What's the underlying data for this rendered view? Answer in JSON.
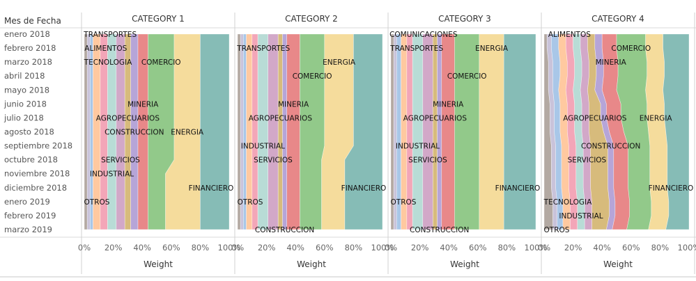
{
  "chart_data": {
    "type": "area",
    "orientation": "horizontal-stacked-100",
    "row_header": "Mes de Fecha",
    "months": [
      "enero 2018",
      "febrero 2018",
      "marzo 2018",
      "abril 2018",
      "mayo 2018",
      "junio 2018",
      "julio 2018",
      "agosto 2018",
      "septiembre 2018",
      "octubre 2018",
      "noviembre 2018",
      "diciembre 2018",
      "enero 2019",
      "febrero 2019",
      "marzo 2019"
    ],
    "x_ticks": [
      "0%",
      "20%",
      "40%",
      "60%",
      "80%",
      "100%"
    ],
    "xlabel": "Weight",
    "xlim": [
      0,
      100
    ],
    "grid": false,
    "colors": {
      "OTROS": "#b3a9a2",
      "TECNOLOGIA": "#c9c3da",
      "COMUNICACIONES": "#a9c7e8",
      "TRANSPORTES": "#ffc9a0",
      "ALIMENTOS": "#f3a6b8",
      "INDUSTRIAL": "#b8dcd6",
      "SERVICIOS": "#d2a8c8",
      "AGROPECUARIOS": "#d7bb7c",
      "CONSTRUCCION": "#b6a5d8",
      "MINERIA": "#e88889",
      "COMERCIO": "#92c98a",
      "ENERGIA": "#f5dc9c",
      "FINANCIERO": "#86bcb6"
    },
    "categories": [
      "OTROS",
      "TECNOLOGIA",
      "COMUNICACIONES",
      "TRANSPORTES",
      "ALIMENTOS",
      "INDUSTRIAL",
      "SERVICIOS",
      "AGROPECUARIOS",
      "CONSTRUCCION",
      "MINERIA",
      "COMERCIO",
      "ENERGIA",
      "FINANCIERO"
    ],
    "panels": [
      {
        "title": "CATEGORY 1",
        "series": {
          "OTROS": [
            2,
            2,
            2,
            2,
            2,
            2,
            2,
            2,
            2,
            2,
            2,
            2,
            2,
            2,
            2
          ],
          "TECNOLOGIA": [
            2,
            2,
            2,
            2,
            2,
            2,
            2,
            2,
            2,
            2,
            2,
            2,
            2,
            2,
            2
          ],
          "COMUNICACIONES": [
            2,
            2,
            2,
            2,
            2,
            2,
            2,
            2,
            2,
            2,
            2,
            2,
            2,
            2,
            2
          ],
          "TRANSPORTES": [
            5,
            5,
            5,
            5,
            5,
            5,
            5,
            5,
            5,
            5,
            5,
            5,
            5,
            5,
            5
          ],
          "ALIMENTOS": [
            5,
            5,
            5,
            5,
            5,
            5,
            5,
            5,
            5,
            5,
            5,
            5,
            5,
            5,
            5
          ],
          "INDUSTRIAL": [
            6,
            6,
            6,
            6,
            6,
            6,
            6,
            6,
            6,
            6,
            6,
            6,
            6,
            6,
            6
          ],
          "SERVICIOS": [
            6,
            6,
            6,
            6,
            6,
            6,
            6,
            6,
            6,
            6,
            6,
            6,
            6,
            6,
            6
          ],
          "AGROPECUARIOS": [
            4,
            4,
            4,
            4,
            4,
            4,
            4,
            4,
            4,
            4,
            4,
            4,
            4,
            4,
            4
          ],
          "CONSTRUCCION": [
            5,
            5,
            5,
            5,
            5,
            5,
            5,
            5,
            5,
            5,
            5,
            5,
            5,
            5,
            5
          ],
          "MINERIA": [
            7,
            7,
            7,
            7,
            7,
            7,
            7,
            7,
            7,
            7,
            7,
            7,
            7,
            7,
            7
          ],
          "COMERCIO": [
            18,
            18,
            18,
            18,
            18,
            18,
            18,
            18,
            18,
            18,
            12,
            12,
            12,
            12,
            12
          ],
          "ENERGIA": [
            18,
            18,
            18,
            18,
            18,
            18,
            18,
            18,
            18,
            18,
            24,
            24,
            24,
            24,
            24
          ],
          "FINANCIERO": [
            20,
            20,
            20,
            20,
            20,
            20,
            20,
            20,
            20,
            20,
            20,
            20,
            20,
            20,
            20
          ]
        }
      },
      {
        "title": "CATEGORY 2",
        "series": {
          "OTROS": [
            2,
            2,
            2,
            2,
            2,
            2,
            2,
            2,
            2,
            2,
            2,
            2,
            2,
            2,
            2
          ],
          "TECNOLOGIA": [
            2,
            2,
            2,
            2,
            2,
            2,
            2,
            2,
            2,
            2,
            2,
            2,
            2,
            2,
            2
          ],
          "COMUNICACIONES": [
            2,
            2,
            2,
            2,
            2,
            2,
            2,
            2,
            2,
            2,
            2,
            2,
            2,
            2,
            2
          ],
          "TRANSPORTES": [
            4,
            4,
            4,
            4,
            4,
            4,
            4,
            4,
            4,
            4,
            4,
            4,
            4,
            4,
            4
          ],
          "ALIMENTOS": [
            4,
            4,
            4,
            4,
            4,
            4,
            4,
            4,
            4,
            4,
            4,
            4,
            4,
            4,
            4
          ],
          "INDUSTRIAL": [
            7,
            7,
            7,
            7,
            7,
            7,
            7,
            7,
            7,
            7,
            7,
            7,
            7,
            7,
            7
          ],
          "SERVICIOS": [
            7,
            7,
            7,
            7,
            7,
            7,
            7,
            7,
            7,
            7,
            7,
            7,
            7,
            7,
            7
          ],
          "AGROPECUARIOS": [
            3,
            3,
            3,
            3,
            3,
            3,
            3,
            3,
            3,
            3,
            3,
            3,
            3,
            3,
            3
          ],
          "CONSTRUCCION": [
            3,
            3,
            3,
            3,
            3,
            3,
            3,
            3,
            3,
            3,
            3,
            3,
            3,
            3,
            3
          ],
          "MINERIA": [
            9,
            9,
            9,
            9,
            9,
            9,
            9,
            9,
            9,
            9,
            9,
            9,
            9,
            9,
            9
          ],
          "COMERCIO": [
            17,
            17,
            17,
            17,
            17,
            17,
            17,
            17,
            17,
            15,
            15,
            15,
            15,
            15,
            15
          ],
          "ENERGIA": [
            20,
            20,
            20,
            20,
            20,
            20,
            20,
            20,
            20,
            16,
            16,
            16,
            16,
            16,
            16
          ],
          "FINANCIERO": [
            20,
            20,
            20,
            20,
            20,
            20,
            20,
            20,
            20,
            26,
            26,
            26,
            26,
            26,
            26
          ]
        }
      },
      {
        "title": "CATEGORY 3",
        "series": {
          "OTROS": [
            2,
            2,
            2,
            2,
            2,
            2,
            2,
            2,
            2,
            2,
            2,
            2,
            2,
            2,
            2
          ],
          "TECNOLOGIA": [
            2,
            2,
            2,
            2,
            2,
            2,
            2,
            2,
            2,
            2,
            2,
            2,
            2,
            2,
            2
          ],
          "COMUNICACIONES": [
            3,
            3,
            3,
            3,
            3,
            3,
            3,
            3,
            3,
            3,
            3,
            3,
            3,
            3,
            3
          ],
          "TRANSPORTES": [
            4,
            4,
            4,
            4,
            4,
            4,
            4,
            4,
            4,
            4,
            4,
            4,
            4,
            4,
            4
          ],
          "ALIMENTOS": [
            4,
            4,
            4,
            4,
            4,
            4,
            4,
            4,
            4,
            4,
            4,
            4,
            4,
            4,
            4
          ],
          "INDUSTRIAL": [
            7,
            7,
            7,
            7,
            7,
            7,
            7,
            7,
            7,
            7,
            7,
            7,
            7,
            7,
            7
          ],
          "SERVICIOS": [
            7,
            7,
            7,
            7,
            7,
            7,
            7,
            7,
            7,
            7,
            7,
            7,
            7,
            7,
            7
          ],
          "AGROPECUARIOS": [
            3,
            3,
            3,
            3,
            3,
            3,
            3,
            3,
            3,
            3,
            3,
            3,
            3,
            3,
            3
          ],
          "CONSTRUCCION": [
            3,
            3,
            3,
            3,
            3,
            3,
            3,
            3,
            3,
            3,
            3,
            3,
            3,
            3,
            3
          ],
          "MINERIA": [
            9,
            9,
            9,
            9,
            9,
            9,
            9,
            9,
            9,
            9,
            9,
            9,
            9,
            9,
            9
          ],
          "COMERCIO": [
            17,
            17,
            17,
            17,
            17,
            17,
            17,
            17,
            17,
            17,
            17,
            17,
            17,
            17,
            17
          ],
          "ENERGIA": [
            17,
            17,
            17,
            17,
            17,
            17,
            17,
            17,
            17,
            17,
            17,
            17,
            17,
            17,
            17
          ],
          "FINANCIERO": [
            22,
            22,
            22,
            22,
            22,
            22,
            22,
            22,
            22,
            22,
            22,
            22,
            22,
            22,
            22
          ]
        }
      },
      {
        "title": "CATEGORY 4",
        "series": {
          "OTROS": [
            2,
            2,
            3,
            3,
            3,
            4,
            4,
            4,
            5,
            5,
            5,
            5,
            6,
            6,
            6
          ],
          "TECNOLOGIA": [
            3,
            3,
            3,
            3,
            3,
            3,
            3,
            3,
            3,
            3,
            3,
            3,
            3,
            3,
            3
          ],
          "COMUNICACIONES": [
            5,
            5,
            5,
            5,
            4,
            4,
            4,
            4,
            4,
            4,
            4,
            4,
            4,
            4,
            4
          ],
          "TRANSPORTES": [
            5,
            5,
            5,
            5,
            5,
            5,
            5,
            5,
            5,
            5,
            5,
            5,
            5,
            5,
            5
          ],
          "ALIMENTOS": [
            5,
            5,
            5,
            5,
            5,
            5,
            5,
            5,
            5,
            5,
            5,
            5,
            5,
            5,
            5
          ],
          "INDUSTRIAL": [
            5,
            5,
            5,
            5,
            5,
            5,
            5,
            5,
            5,
            5,
            5,
            5,
            5,
            5,
            5
          ],
          "SERVICIOS": [
            5,
            5,
            5,
            5,
            5,
            5,
            5,
            5,
            5,
            5,
            5,
            5,
            5,
            5,
            5
          ],
          "AGROPECUARIOS": [
            5,
            5,
            5,
            5,
            5,
            8,
            8,
            10,
            12,
            12,
            12,
            12,
            12,
            12,
            10
          ],
          "CONSTRUCCION": [
            5,
            5,
            5,
            5,
            5,
            4,
            4,
            4,
            4,
            4,
            4,
            4,
            4,
            4,
            4
          ],
          "MINERIA": [
            10,
            10,
            10,
            10,
            10,
            10,
            10,
            10,
            10,
            10,
            10,
            10,
            10,
            10,
            10
          ],
          "COMERCIO": [
            20,
            20,
            20,
            20,
            20,
            18,
            18,
            17,
            15,
            15,
            15,
            15,
            15,
            15,
            15
          ],
          "ENERGIA": [
            12,
            12,
            12,
            12,
            12,
            12,
            12,
            12,
            12,
            12,
            12,
            12,
            12,
            12,
            12
          ],
          "FINANCIERO": [
            18,
            18,
            17,
            17,
            18,
            17,
            17,
            16,
            15,
            15,
            15,
            15,
            14,
            14,
            16
          ]
        }
      }
    ],
    "labels": [
      [
        [
          "TRANSPORTES",
          0
        ],
        [
          "ALIMENTOS",
          1
        ],
        [
          "TECNOLOGIA",
          2
        ],
        [
          "COMERCIO",
          2
        ],
        [
          "MINERIA",
          5
        ],
        [
          "AGROPECUARIOS",
          6
        ],
        [
          "CONSTRUCCION",
          7
        ],
        [
          "ENERGIA",
          7
        ],
        [
          "SERVICIOS",
          9
        ],
        [
          "INDUSTRIAL",
          10
        ],
        [
          "FINANCIERO",
          11
        ],
        [
          "OTROS",
          12
        ]
      ],
      [
        [
          "TRANSPORTES",
          1
        ],
        [
          "ENERGIA",
          2
        ],
        [
          "COMERCIO",
          3
        ],
        [
          "MINERIA",
          5
        ],
        [
          "AGROPECUARIOS",
          6
        ],
        [
          "INDUSTRIAL",
          8
        ],
        [
          "SERVICIOS",
          9
        ],
        [
          "FINANCIERO",
          11
        ],
        [
          "OTROS",
          12
        ],
        [
          "CONSTRUCCION",
          14
        ]
      ],
      [
        [
          "COMUNICACIONES",
          0
        ],
        [
          "TRANSPORTES",
          1
        ],
        [
          "ENERGIA",
          1
        ],
        [
          "COMERCIO",
          3
        ],
        [
          "MINERIA",
          5
        ],
        [
          "AGROPECUARIOS",
          6
        ],
        [
          "INDUSTRIAL",
          8
        ],
        [
          "SERVICIOS",
          9
        ],
        [
          "FINANCIERO",
          11
        ],
        [
          "OTROS",
          12
        ],
        [
          "CONSTRUCCION",
          14
        ]
      ],
      [
        [
          "ALIMENTOS",
          0
        ],
        [
          "COMERCIO",
          1
        ],
        [
          "MINERIA",
          2
        ],
        [
          "AGROPECUARIOS",
          6
        ],
        [
          "ENERGIA",
          6
        ],
        [
          "CONSTRUCCION",
          8
        ],
        [
          "SERVICIOS",
          9
        ],
        [
          "FINANCIERO",
          11
        ],
        [
          "TECNOLOGIA",
          12
        ],
        [
          "INDUSTRIAL",
          13
        ],
        [
          "OTROS",
          14
        ]
      ]
    ]
  }
}
